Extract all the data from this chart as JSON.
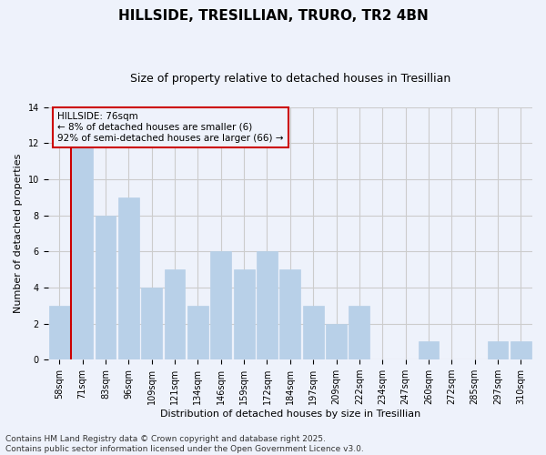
{
  "title": "HILLSIDE, TRESILLIAN, TRURO, TR2 4BN",
  "subtitle": "Size of property relative to detached houses in Tresillian",
  "xlabel": "Distribution of detached houses by size in Tresillian",
  "ylabel": "Number of detached properties",
  "categories": [
    "58sqm",
    "71sqm",
    "83sqm",
    "96sqm",
    "109sqm",
    "121sqm",
    "134sqm",
    "146sqm",
    "159sqm",
    "172sqm",
    "184sqm",
    "197sqm",
    "209sqm",
    "222sqm",
    "234sqm",
    "247sqm",
    "260sqm",
    "272sqm",
    "285sqm",
    "297sqm",
    "310sqm"
  ],
  "values": [
    3,
    12,
    8,
    9,
    4,
    5,
    3,
    6,
    5,
    6,
    5,
    3,
    2,
    3,
    0,
    0,
    1,
    0,
    0,
    1,
    1
  ],
  "bar_color": "#b8d0e8",
  "bar_edgecolor": "#b8d0e8",
  "vline_color": "#cc0000",
  "annotation_text": "HILLSIDE: 76sqm\n← 8% of detached houses are smaller (6)\n92% of semi-detached houses are larger (66) →",
  "annotation_box_edgecolor": "#cc0000",
  "annotation_fontsize": 7.5,
  "ylim": [
    0,
    14
  ],
  "yticks": [
    0,
    2,
    4,
    6,
    8,
    10,
    12,
    14
  ],
  "grid_color": "#cccccc",
  "background_color": "#eef2fb",
  "footer": "Contains HM Land Registry data © Crown copyright and database right 2025.\nContains public sector information licensed under the Open Government Licence v3.0.",
  "title_fontsize": 11,
  "subtitle_fontsize": 9,
  "xlabel_fontsize": 8,
  "ylabel_fontsize": 8,
  "tick_fontsize": 7,
  "footer_fontsize": 6.5
}
